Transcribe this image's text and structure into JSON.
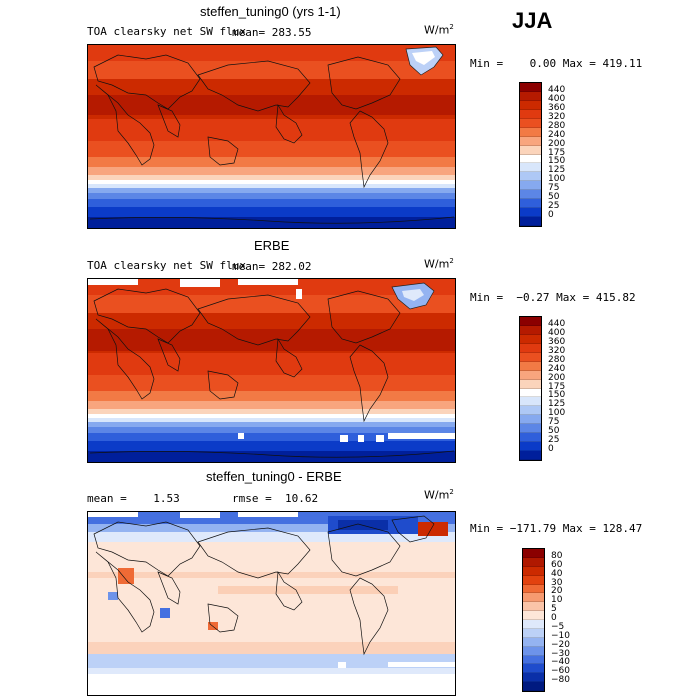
{
  "season": "JJA",
  "panels": [
    {
      "title": "steffen_tuning0 (yrs 1-1)",
      "var_label": "TOA clearsky net SW flux",
      "mean_text": "mean= 283.55",
      "unit_base": "W/m",
      "unit_exp": "2",
      "minmax": "Min =    0.00 Max = 419.11",
      "colorbar": {
        "levels": [
          "440",
          "400",
          "360",
          "320",
          "280",
          "240",
          "200",
          "175",
          "150",
          "125",
          "100",
          "75",
          "50",
          "25",
          "0"
        ],
        "colors": [
          "#8b0000",
          "#b51a00",
          "#cc2a00",
          "#e03a10",
          "#ea5020",
          "#f27a45",
          "#f8a57e",
          "#fbd4bb",
          "#ffffff",
          "#d8e6fb",
          "#aec8f5",
          "#86a9ef",
          "#5c86e6",
          "#2f5fdb",
          "#0b3bc8",
          "#001f9b"
        ]
      }
    },
    {
      "title": "ERBE",
      "var_label": "TOA clearsky net SW flux",
      "mean_text": "mean= 282.02",
      "unit_base": "W/m",
      "unit_exp": "2",
      "minmax": "Min =  −0.27 Max = 415.82",
      "colorbar": {
        "levels": [
          "440",
          "400",
          "360",
          "320",
          "280",
          "240",
          "200",
          "175",
          "150",
          "125",
          "100",
          "75",
          "50",
          "25",
          "0"
        ],
        "colors": [
          "#8b0000",
          "#b51a00",
          "#cc2a00",
          "#e03a10",
          "#ea5020",
          "#f27a45",
          "#f8a57e",
          "#fbd4bb",
          "#ffffff",
          "#d8e6fb",
          "#aec8f5",
          "#86a9ef",
          "#5c86e6",
          "#2f5fdb",
          "#0b3bc8",
          "#001f9b"
        ]
      }
    },
    {
      "title": "steffen_tuning0 - ERBE",
      "mean_text": "mean =    1.53",
      "rmse_text": "rmse =  10.62",
      "unit_base": "W/m",
      "unit_exp": "2",
      "minmax": "Min = −171.79 Max = 128.47",
      "colorbar": {
        "levels": [
          "80",
          "60",
          "40",
          "30",
          "20",
          "10",
          "5",
          "0",
          "−5",
          "−10",
          "−20",
          "−30",
          "−40",
          "−60",
          "−80"
        ],
        "colors": [
          "#8b0000",
          "#b01800",
          "#cc2a00",
          "#e2420f",
          "#ef6a35",
          "#f69a70",
          "#fac4a8",
          "#fde6d8",
          "#dfe9fb",
          "#bcd1f7",
          "#94b3f1",
          "#6d93ea",
          "#4570e0",
          "#1f4ccc",
          "#0a2fa8",
          "#001a80"
        ]
      }
    }
  ],
  "chart_data": [
    {
      "type": "heatmap",
      "title": "steffen_tuning0 (yrs 1-1)",
      "variable": "TOA clearsky net SW flux",
      "units": "W/m2",
      "mean": 283.55,
      "min": 0.0,
      "max": 419.11,
      "contour_levels": [
        0,
        25,
        50,
        75,
        100,
        125,
        150,
        175,
        200,
        240,
        280,
        320,
        360,
        400,
        440
      ]
    },
    {
      "type": "heatmap",
      "title": "ERBE",
      "variable": "TOA clearsky net SW flux",
      "units": "W/m2",
      "mean": 282.02,
      "min": -0.27,
      "max": 415.82,
      "contour_levels": [
        0,
        25,
        50,
        75,
        100,
        125,
        150,
        175,
        200,
        240,
        280,
        320,
        360,
        400,
        440
      ]
    },
    {
      "type": "heatmap",
      "title": "steffen_tuning0 - ERBE",
      "units": "W/m2",
      "mean": 1.53,
      "rmse": 10.62,
      "min": -171.79,
      "max": 128.47,
      "contour_levels": [
        -80,
        -60,
        -40,
        -30,
        -20,
        -10,
        -5,
        0,
        5,
        10,
        20,
        30,
        40,
        60,
        80
      ]
    }
  ]
}
